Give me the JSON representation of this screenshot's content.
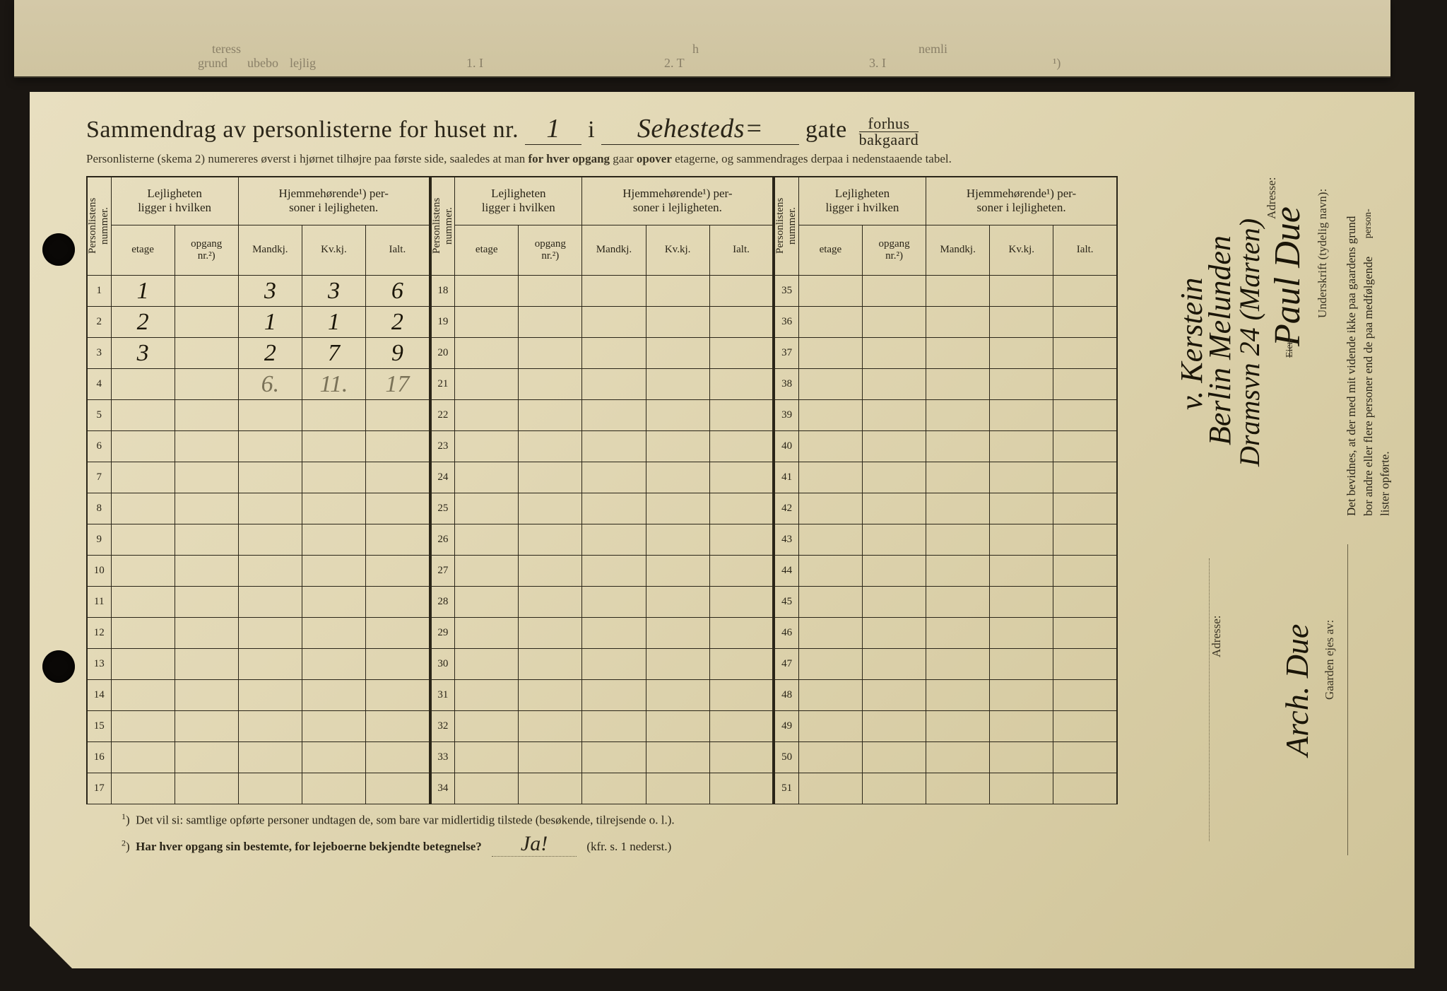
{
  "colors": {
    "page_bg_light": "#e8dfc0",
    "page_bg_dark": "#cfc398",
    "ink": "#2a2518",
    "hand_ink": "#1a1508",
    "pencil": "#7a7258",
    "border": "#2a2518",
    "outer_bg": "#1a1612"
  },
  "top_page_fragments": [
    "grund",
    "teress",
    "ubebo",
    "lejlig",
    "1. I",
    "2. T",
    "h",
    "3. I",
    "nemli",
    "¹)"
  ],
  "title": {
    "prefix": "Sammendrag av personlisterne for huset nr.",
    "house_nr": "1",
    "middle": "i",
    "street_hand": "Sehesteds=",
    "street_suffix": "gate",
    "fraction_top": "forhus",
    "fraction_bottom": "bakgaard"
  },
  "subtitle": "Personlisterne (skema 2) numereres øverst i hjørnet tilhøjre paa første side, saaledes at man for hver opgang gaar opover etagerne, og sammendrages derpaa i nedenstaaende tabel.",
  "subtitle_bold1": "for hver opgang",
  "subtitle_bold2": "opover",
  "headers": {
    "personlistens": "Personlistens\nnummer.",
    "lejligheten": "Lejligheten\nligger i hvilken",
    "hjemmehorende": "Hjemmehørende¹) per-\nsoner i lejligheten.",
    "etage": "etage",
    "opgang": "opgang\nnr.²)",
    "mandkj": "Mandkj.",
    "kvkj": "Kv.kj.",
    "ialt": "Ialt."
  },
  "rows_block1": [
    {
      "n": "1",
      "etage": "1",
      "opgang": "",
      "m": "3",
      "k": "3",
      "i": "6"
    },
    {
      "n": "2",
      "etage": "2",
      "opgang": "",
      "m": "1",
      "k": "1",
      "i": "2"
    },
    {
      "n": "3",
      "etage": "3",
      "opgang": "",
      "m": "2",
      "k": "7",
      "i": "9"
    },
    {
      "n": "4",
      "etage": "",
      "opgang": "",
      "m": "6.",
      "k": "11.",
      "i": "17",
      "pencil": true
    },
    {
      "n": "5"
    },
    {
      "n": "6"
    },
    {
      "n": "7"
    },
    {
      "n": "8"
    },
    {
      "n": "9"
    },
    {
      "n": "10"
    },
    {
      "n": "11"
    },
    {
      "n": "12"
    },
    {
      "n": "13"
    },
    {
      "n": "14"
    },
    {
      "n": "15"
    },
    {
      "n": "16"
    },
    {
      "n": "17"
    }
  ],
  "rows_block2_start": 18,
  "rows_block2_end": 34,
  "rows_block3_start": 35,
  "rows_block3_end": 51,
  "footnotes": {
    "f1": "Det vil si: samtlige opførte personer undtagen de, som bare var midlertidig tilstede (besøkende, tilrejsende o. l.).",
    "f2_prefix": "Har hver opgang sin bestemte, for lejeboerne bekjendte betegnelse?",
    "f2_hand": "Ja!",
    "f2_suffix": "(kfr. s. 1 nederst.)"
  },
  "side": {
    "attest_lines": [
      "Det bevidnes, at der med mit vidende ikke paa gaardens grund",
      "bor andre eller flere personer end de paa medfølgende",
      "lister opførte."
    ],
    "attest_small": "person-",
    "underskrift_label": "Underskrift (tydelig navn):",
    "underskrift_hand": "Paul Due",
    "eier_label": "Eier.",
    "adresse_label": "Adresse:",
    "adresse_hand1": "Dramsvn 24 (Marten)",
    "adresse_hand2": "Berlin Melunden",
    "adresse_hand3": "v. Kerstein",
    "gaarden_label": "Gaarden ejes av:",
    "gaarden_hand": "Arch. Due",
    "adresse2_label": "Adresse:"
  }
}
